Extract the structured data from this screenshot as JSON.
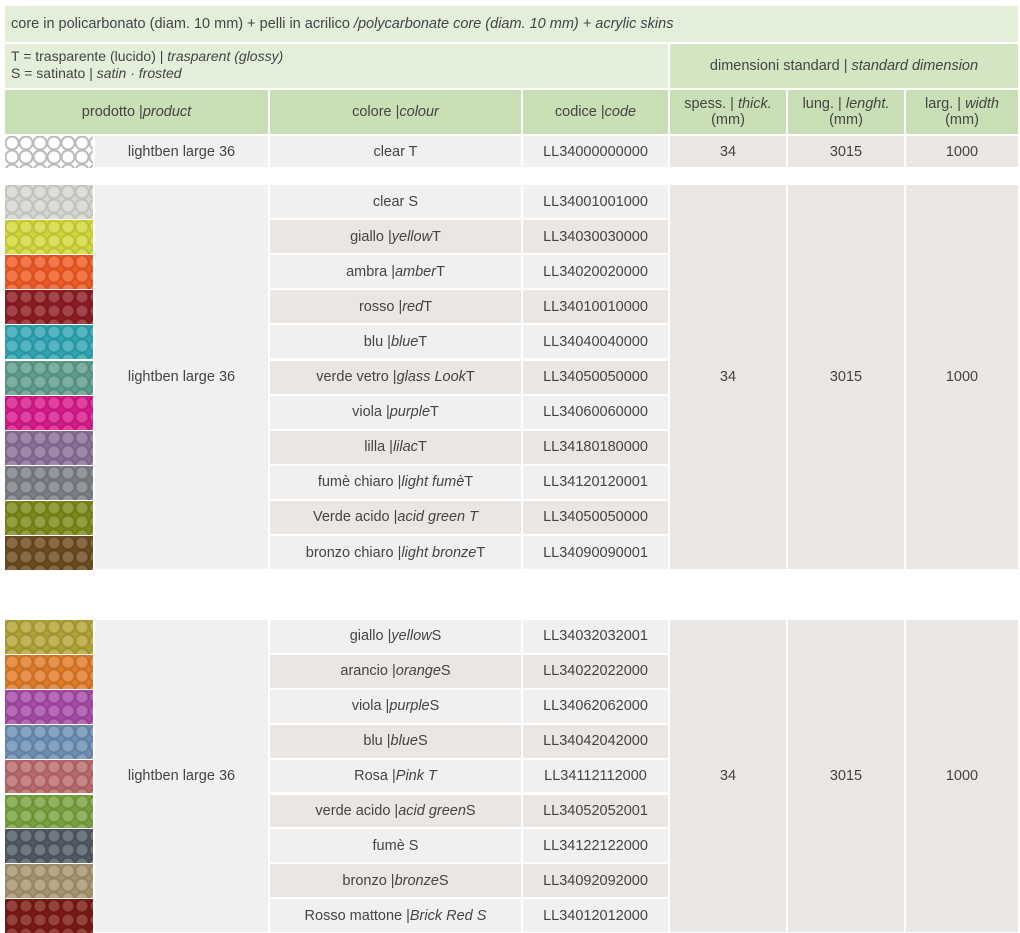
{
  "header": {
    "title_regular": "core in policarbonato (diam. 10 mm) + pelli in acrilico ",
    "title_italic": "/polycarbonate core (diam. 10 mm) + acrylic skins",
    "legend_t_regular": "T = trasparente (lucido) | ",
    "legend_t_italic": "trasparent (glossy)",
    "legend_s_regular": "S = satinato | ",
    "legend_s_italic": "satin · frosted",
    "dim_regular": "dimensioni standard | ",
    "dim_italic": "standard dimension"
  },
  "columns": {
    "product_regular": "prodotto | ",
    "product_italic": "product",
    "colour_regular": "colore | ",
    "colour_italic": "colour",
    "code_regular": "codice | ",
    "code_italic": "code",
    "thick_regular": "spess. | ",
    "thick_italic": "thick.",
    "thick_unit": "(mm)",
    "length_regular": "lung. | ",
    "length_italic": "lenght.",
    "length_unit": "(mm)",
    "width_regular": "larg. | ",
    "width_italic": "width",
    "width_unit": "(mm)"
  },
  "group1": {
    "product": "lightben large 36",
    "thick": "34",
    "length": "3015",
    "width": "1000",
    "rows": [
      {
        "it": "clear T",
        "en": "",
        "suffix": "",
        "code": "LL34000000000",
        "color": "#ffffff"
      }
    ]
  },
  "group2": {
    "product": "lightben large 36",
    "thick": "34",
    "length": "3015",
    "width": "1000",
    "rows": [
      {
        "it": "clear S",
        "en": "",
        "suffix": "",
        "code": "LL34001001000",
        "color": "#d6d6d2"
      },
      {
        "it": "giallo | ",
        "en": "yellow",
        "suffix": " T",
        "code": "LL34030030000",
        "color": "#d2d83a"
      },
      {
        "it": "ambra | ",
        "en": "amber",
        "suffix": " T",
        "code": "LL34020020000",
        "color": "#ef5a24"
      },
      {
        "it": "rosso | ",
        "en": "red",
        "suffix": " T",
        "code": "LL34010010000",
        "color": "#8c1c22"
      },
      {
        "it": "blu | ",
        "en": "blue",
        "suffix": " T",
        "code": "LL34040040000",
        "color": "#2fa6b4"
      },
      {
        "it": "verde vetro | ",
        "en": "glass Look",
        "suffix": " T",
        "code": "LL34050050000",
        "color": "#5e9e8c"
      },
      {
        "it": "viola | ",
        "en": "purple",
        "suffix": " T",
        "code": "LL34060060000",
        "color": "#d8198c"
      },
      {
        "it": "lilla | ",
        "en": "lilac",
        "suffix": " T",
        "code": "LL34180180000",
        "color": "#8a6f97"
      },
      {
        "it": "fumè chiaro | ",
        "en": "light fumè",
        "suffix": " T",
        "code": "LL34120120001",
        "color": "#7b8086"
      },
      {
        "it": "Verde acido | ",
        "en": "acid green T",
        "suffix": "",
        "code": "LL34050050000",
        "color": "#7c8a1a"
      },
      {
        "it": "bronzo chiaro | ",
        "en": "light bronze",
        "suffix": " T",
        "code": "LL34090090001",
        "color": "#6d4b1f"
      }
    ]
  },
  "group3": {
    "product": "lightben large 36",
    "thick": "34",
    "length": "3015",
    "width": "1000",
    "rows": [
      {
        "it": "giallo | ",
        "en": "yellow",
        "suffix": " S",
        "code": "LL34032032001",
        "color": "#b3a436"
      },
      {
        "it": "arancio | ",
        "en": "orange",
        "suffix": " S",
        "code": "LL34022022000",
        "color": "#e07b28"
      },
      {
        "it": "viola | ",
        "en": "purple",
        "suffix": " S",
        "code": "LL34062062000",
        "color": "#a64aa7"
      },
      {
        "it": "blu | ",
        "en": "blue",
        "suffix": " S",
        "code": "LL34042042000",
        "color": "#6c8fb6"
      },
      {
        "it": "Rosa | ",
        "en": "Pink T",
        "suffix": "",
        "code": "LL34112112000",
        "color": "#b96a6c"
      },
      {
        "it": "verde acido | ",
        "en": "acid green",
        "suffix": " S",
        "code": "LL34052052001",
        "color": "#78a23f"
      },
      {
        "it": "fumè S",
        "en": "",
        "suffix": "",
        "code": "LL34122122000",
        "color": "#505a64"
      },
      {
        "it": "bronzo | ",
        "en": "bronze",
        "suffix": " S",
        "code": "LL34092092000",
        "color": "#a6946e"
      },
      {
        "it": "Rosso mattone  | ",
        "en": "Brick Red S",
        "suffix": "",
        "code": "LL34012012000",
        "color": "#7b1a12"
      }
    ]
  }
}
